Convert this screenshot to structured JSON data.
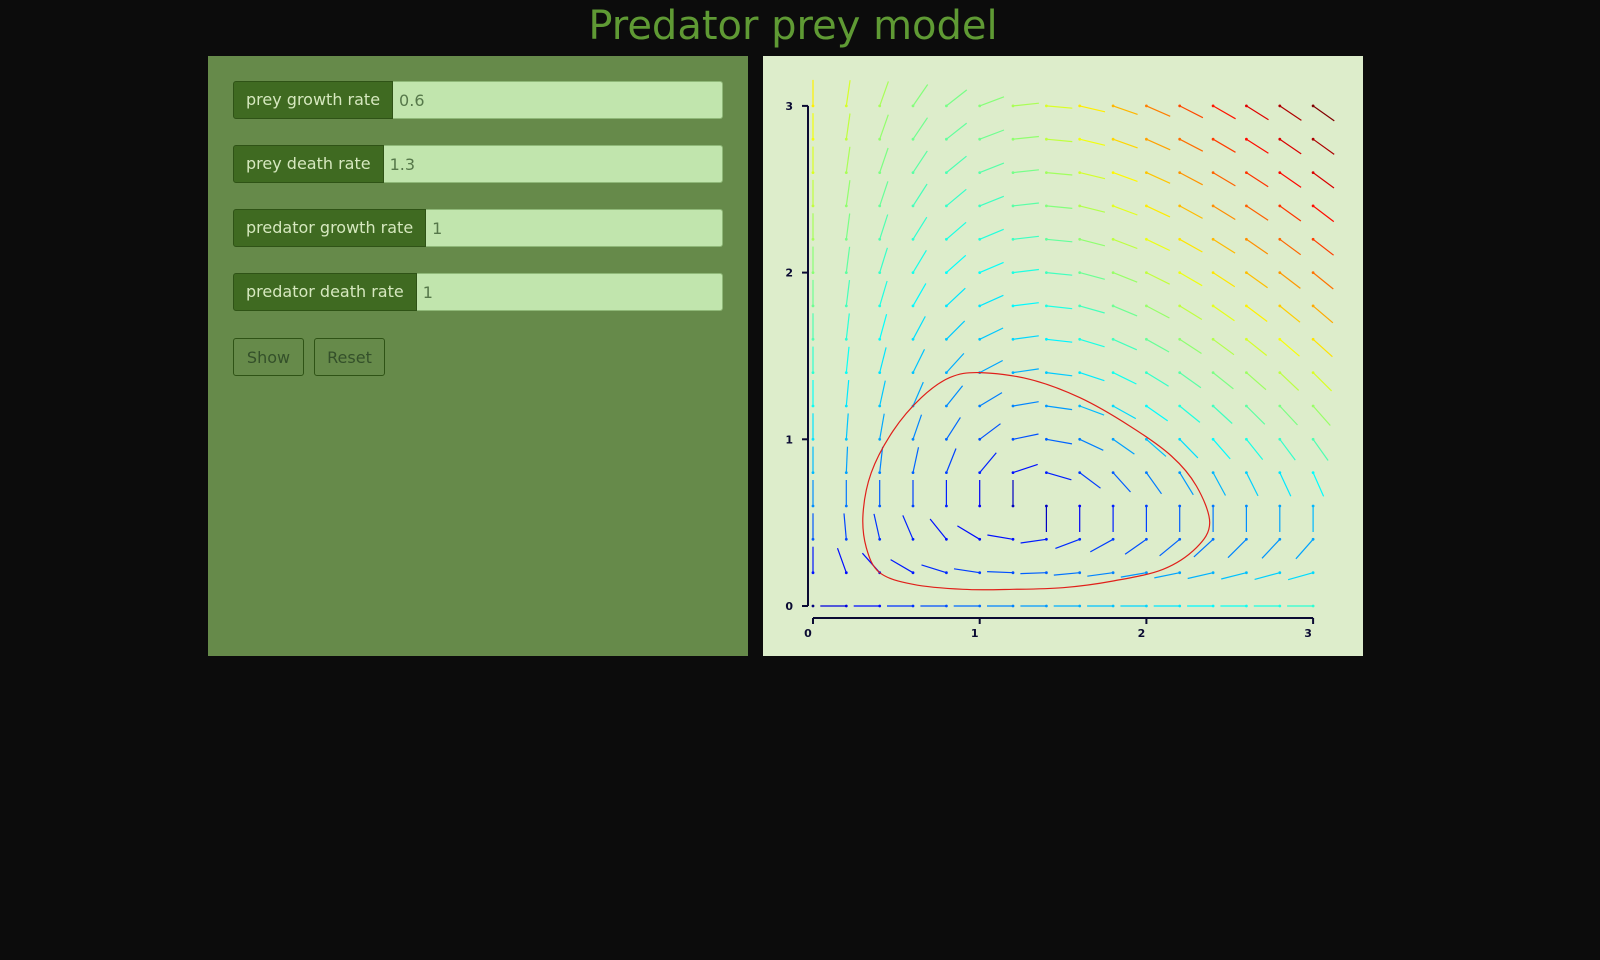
{
  "header": {
    "title": "Predator prey model"
  },
  "controls": {
    "fields": [
      {
        "label": "prey growth rate",
        "value": "0.6"
      },
      {
        "label": "prey death rate",
        "value": "1.3"
      },
      {
        "label": "predator growth rate",
        "value": "1"
      },
      {
        "label": "predator death rate",
        "value": "1"
      }
    ],
    "show_label": "Show",
    "reset_label": "Reset"
  },
  "plot": {
    "x_ticks": [
      "0",
      "1",
      "2",
      "3"
    ],
    "y_ticks": [
      "0",
      "1",
      "2",
      "3"
    ],
    "trajectory_color": "#e0201a",
    "axis_color": "#0b0b33"
  },
  "chart_data": {
    "type": "scatter",
    "plot_kind": "phase-portrait-vector-field",
    "xlim": [
      0,
      3
    ],
    "ylim": [
      0,
      3
    ],
    "grid": false,
    "parameters": {
      "a": 0.6,
      "b": 1.3,
      "c": 1,
      "d": 1
    },
    "grid_step": 0.2,
    "colormap": "jet (by vector magnitude)",
    "trajectory": {
      "x": [
        1.0,
        1.3,
        1.6,
        1.9,
        2.15,
        2.3,
        2.38,
        2.3,
        2.1,
        1.8,
        1.5,
        1.2,
        0.9,
        0.6,
        0.4,
        0.32,
        0.3,
        0.35,
        0.48,
        0.65,
        0.82,
        1.0
      ],
      "y": [
        1.4,
        1.36,
        1.25,
        1.08,
        0.9,
        0.72,
        0.5,
        0.35,
        0.22,
        0.15,
        0.11,
        0.1,
        0.1,
        0.13,
        0.2,
        0.35,
        0.55,
        0.8,
        1.05,
        1.25,
        1.37,
        1.4
      ]
    }
  }
}
